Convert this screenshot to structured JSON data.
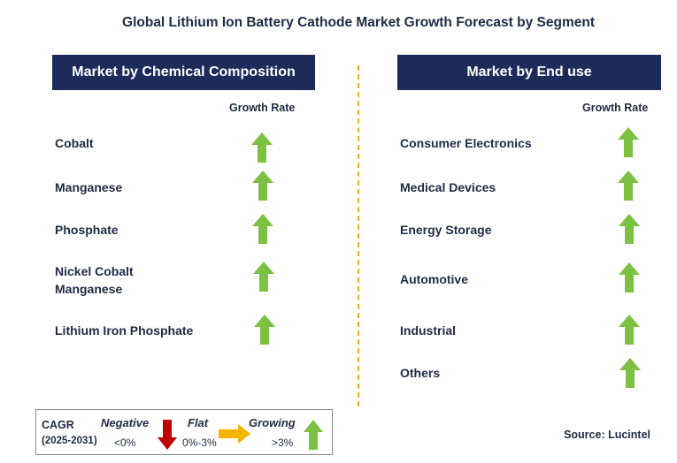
{
  "title": "Global Lithium Ion Battery Cathode Market Growth Forecast by Segment",
  "left_panel": {
    "header": "Market by Chemical Composition",
    "column_label": "Growth Rate",
    "items": [
      "Cobalt",
      "Manganese",
      "Phosphate",
      "Nickel Cobalt Manganese",
      "Lithium Iron Phosphate"
    ],
    "growth": [
      "growing",
      "growing",
      "growing",
      "growing",
      "growing"
    ]
  },
  "right_panel": {
    "header": "Market by End use",
    "column_label": "Growth Rate",
    "items": [
      "Consumer Electronics",
      "Medical Devices",
      "Energy Storage",
      "Automotive",
      "Industrial",
      "Others"
    ],
    "growth": [
      "growing",
      "growing",
      "growing",
      "growing",
      "growing",
      "growing"
    ]
  },
  "legend": {
    "cagr": "CAGR",
    "period": "(2025-2031)",
    "negative_label": "Negative",
    "negative_range": "<0%",
    "flat_label": "Flat",
    "flat_range": "0%-3%",
    "growing_label": "Growing",
    "growing_range": ">3%"
  },
  "source": "Source: Lucintel",
  "colors": {
    "header_bg": "#1d2b5a",
    "growing_arrow": "#7dc142",
    "negative_arrow": "#c00000",
    "flat_arrow": "#f5b400",
    "divider": "#f5b400"
  },
  "icons": {
    "growing": "up-arrow-icon",
    "negative": "down-arrow-icon",
    "flat": "right-arrow-icon"
  }
}
